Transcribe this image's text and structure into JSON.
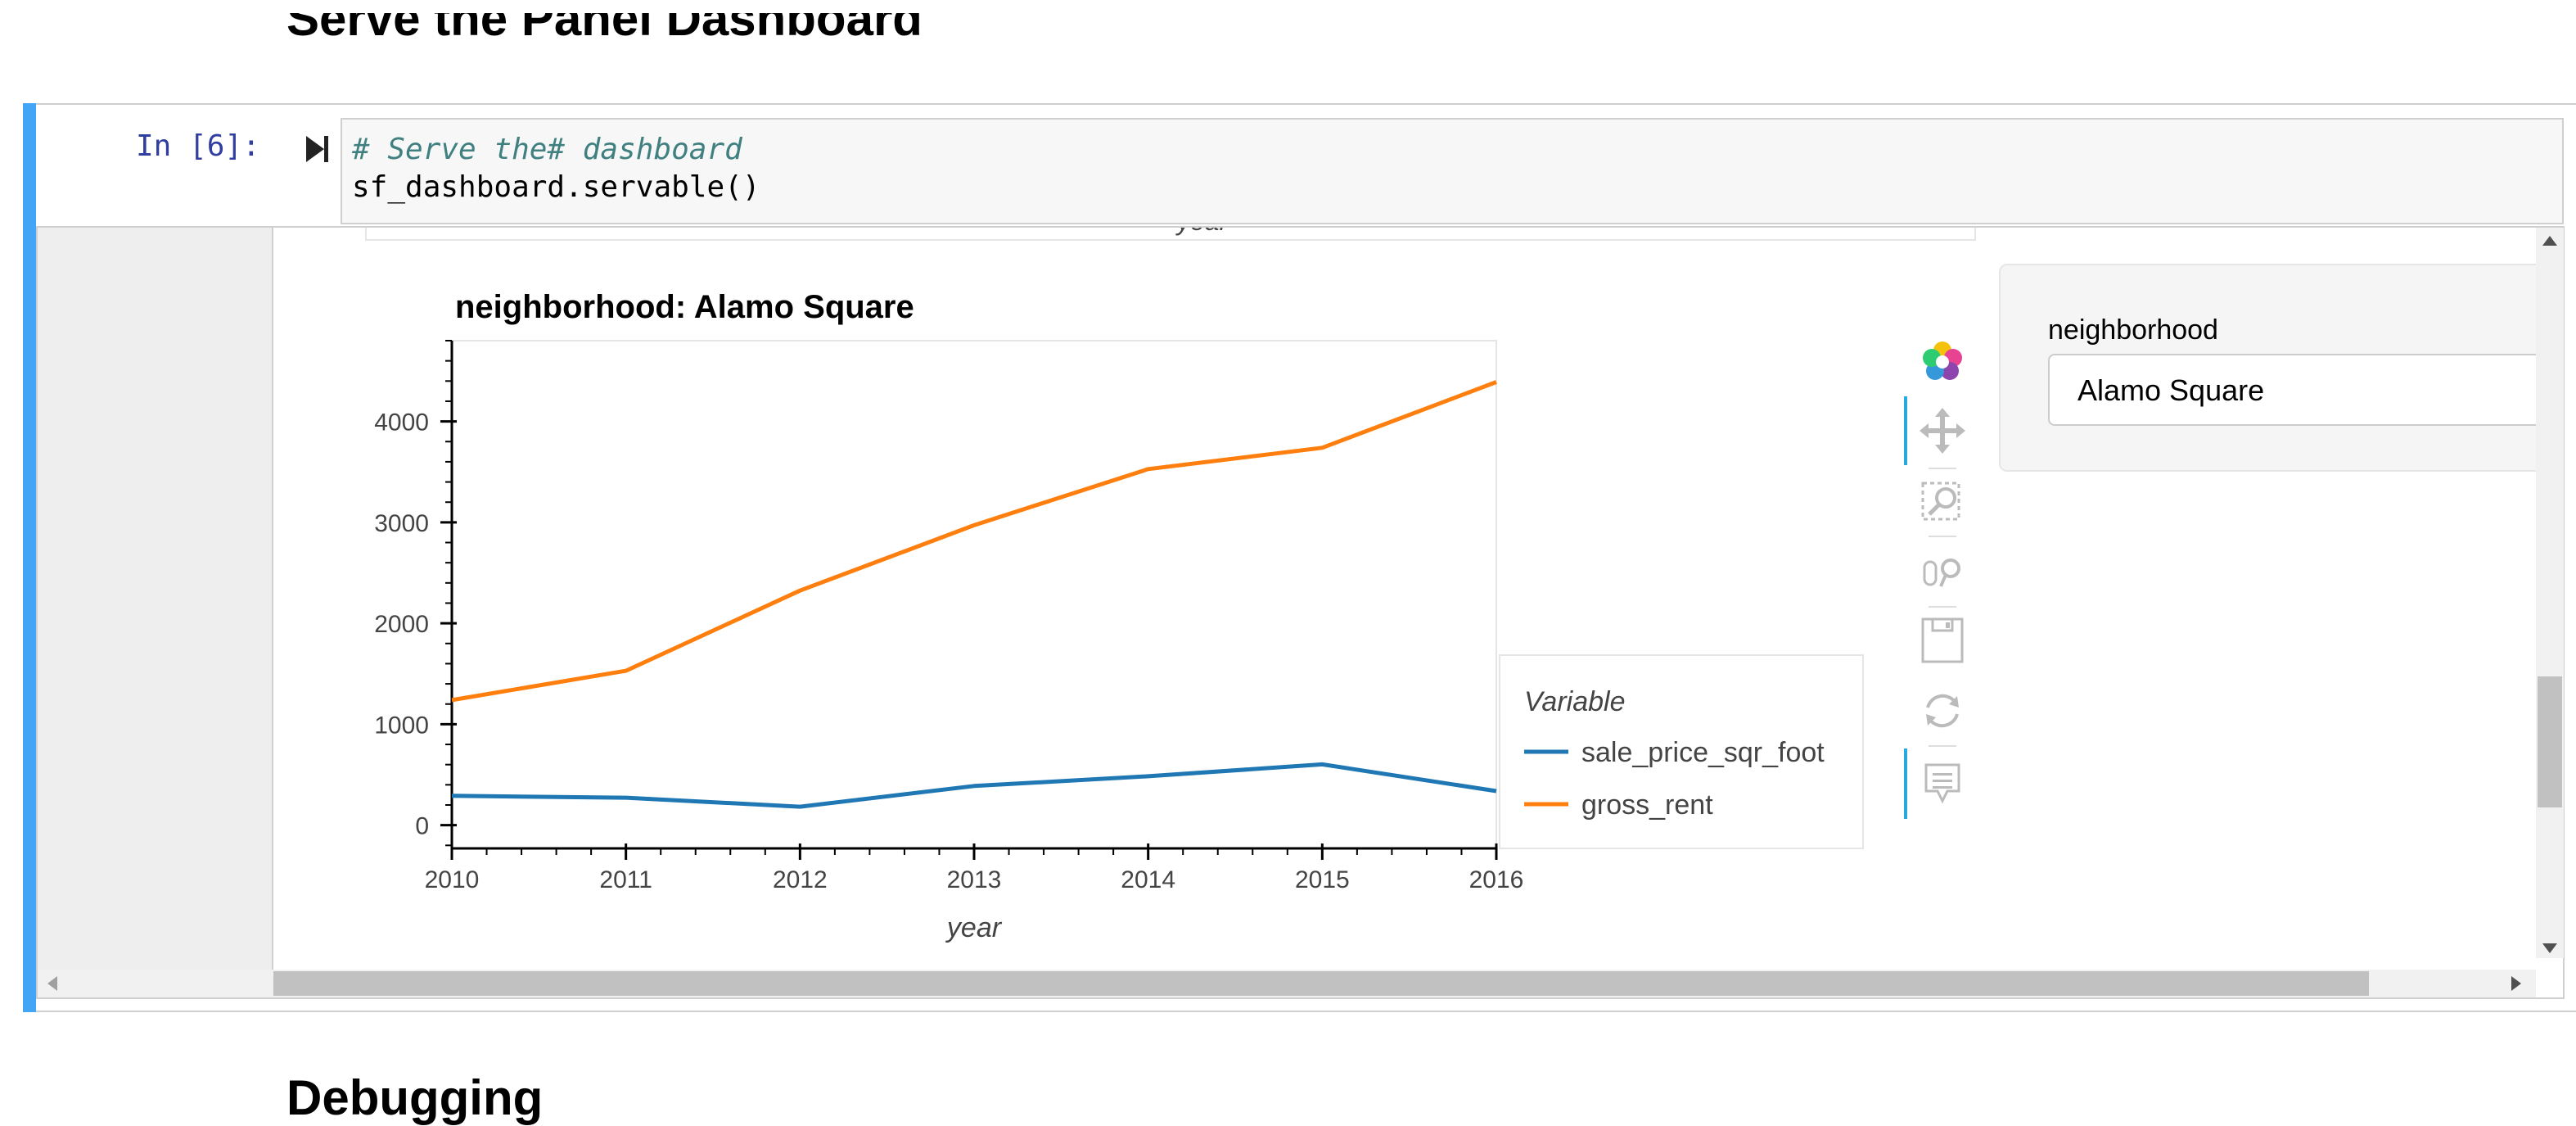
{
  "headings": {
    "top": "Serve the Panel Dashboard",
    "bottom": "Debugging"
  },
  "cell": {
    "prompt": "In [6]:",
    "code_comment": "# Serve the# dashboard",
    "code_statement": "sf_dashboard.servable()"
  },
  "overlap_text": "year",
  "widget": {
    "label": "neighborhood",
    "value": "Alamo Square"
  },
  "toolbar": {
    "icons": [
      "bokeh-logo-icon",
      "pan-icon",
      "box-zoom-icon",
      "wheel-zoom-icon",
      "save-icon",
      "reset-icon",
      "hover-icon"
    ]
  },
  "chart_data": {
    "type": "line",
    "title": "neighborhood: Alamo Square",
    "xlabel": "year",
    "ylabel": "",
    "x": [
      2010,
      2011,
      2012,
      2013,
      2014,
      2015,
      2016
    ],
    "x_ticks": [
      "2010",
      "2011",
      "2012",
      "2013",
      "2014",
      "2015",
      "2016"
    ],
    "y_ticks": [
      "0",
      "1000",
      "2000",
      "3000",
      "4000"
    ],
    "xlim": [
      2010,
      2016
    ],
    "ylim": [
      -230,
      4800
    ],
    "grid": false,
    "legend_title": "Variable",
    "legend_position": "right",
    "series": [
      {
        "name": "sale_price_sqr_foot",
        "color": "#1f77b4",
        "values": [
          291.2,
          272.5,
          183.1,
          387.8,
          484.4,
          602.0,
          338.1
        ]
      },
      {
        "name": "gross_rent",
        "color": "#ff7f0e",
        "values": [
          1239,
          1530,
          2324,
          2971,
          3528,
          3739,
          4390
        ]
      }
    ]
  }
}
